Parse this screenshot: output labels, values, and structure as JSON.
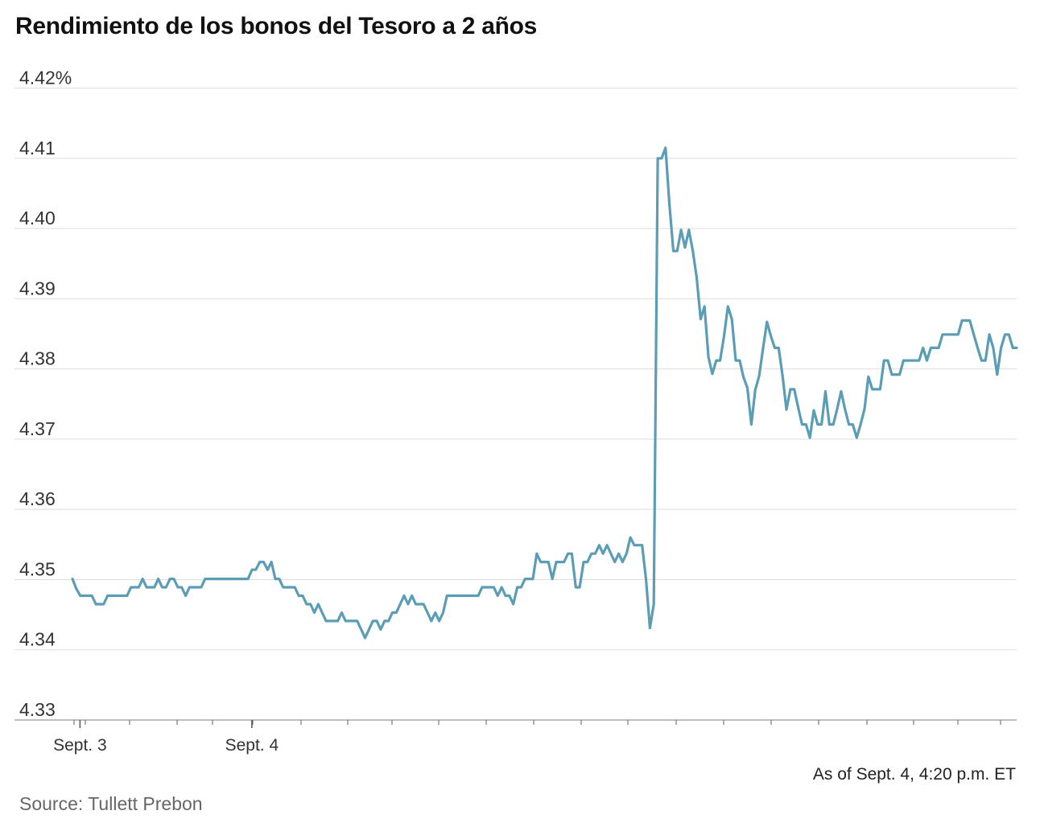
{
  "chart_data": {
    "type": "line",
    "title": "Rendimiento de los bonos del Tesoro a 2 años",
    "xlabel": "",
    "ylabel": "",
    "ylim": [
      4.33,
      4.42
    ],
    "yticks": [
      4.42,
      4.41,
      4.4,
      4.39,
      4.38,
      4.37,
      4.36,
      4.35,
      4.34,
      4.33
    ],
    "ytick_labels": [
      "4.42%",
      "4.41",
      "4.40",
      "4.39",
      "4.38",
      "4.37",
      "4.36",
      "4.35",
      "4.34",
      "4.33"
    ],
    "x_tick_labels": [
      {
        "label": "Sept. 3",
        "t": 0.008
      },
      {
        "label": "Sept. 4",
        "t": 0.19
      }
    ],
    "grid": true,
    "legend": "none",
    "color": "#5b9db4",
    "series": [
      {
        "values": [
          4.3501,
          4.3487,
          4.3477,
          4.3477,
          4.3477,
          4.3477,
          4.3465,
          4.3465,
          4.3465,
          4.3477,
          4.3477,
          4.3477,
          4.3477,
          4.3477,
          4.3477,
          4.3489,
          4.3489,
          4.3489,
          4.3501,
          4.3489,
          4.3489,
          4.3489,
          4.3501,
          4.3489,
          4.3489,
          4.3501,
          4.3501,
          4.3489,
          4.3489,
          4.3477,
          4.3489,
          4.3489,
          4.3489,
          4.3489,
          4.3501,
          4.3501,
          4.3501,
          4.3501,
          4.3501,
          4.3501,
          4.3501,
          4.3501,
          4.3501,
          4.3501,
          4.3501,
          4.3501,
          4.3514,
          4.3514,
          4.3525,
          4.3525,
          4.3514,
          4.3525,
          4.3501,
          4.3501,
          4.3489,
          4.3489,
          4.3489,
          4.3489,
          4.3477,
          4.3477,
          4.3465,
          4.3465,
          4.3453,
          4.3465,
          4.3453,
          4.3441,
          4.3441,
          4.3441,
          4.3441,
          4.3453,
          4.3441,
          4.3441,
          4.3441,
          4.3441,
          4.3429,
          4.3417,
          4.3429,
          4.3441,
          4.3441,
          4.3429,
          4.3441,
          4.3441,
          4.3453,
          4.3453,
          4.3465,
          4.3477,
          4.3465,
          4.3477,
          4.3465,
          4.3465,
          4.3465,
          4.3453,
          4.3441,
          4.3453,
          4.3441,
          4.3453,
          4.3477,
          4.3477,
          4.3477,
          4.3477,
          4.3477,
          4.3477,
          4.3477,
          4.3477,
          4.3477,
          4.3489,
          4.3489,
          4.3489,
          4.3489,
          4.3477,
          4.3489,
          4.3477,
          4.3477,
          4.3465,
          4.3489,
          4.3489,
          4.3501,
          4.3501,
          4.3501,
          4.3537,
          4.3525,
          4.3525,
          4.3525,
          4.3501,
          4.3525,
          4.3525,
          4.3525,
          4.3537,
          4.3537,
          4.3489,
          4.3489,
          4.3525,
          4.3525,
          4.3537,
          4.3537,
          4.3549,
          4.3537,
          4.3549,
          4.3537,
          4.3525,
          4.3537,
          4.3525,
          4.3537,
          4.356,
          4.3549,
          4.3549,
          4.3549,
          4.3501,
          4.3431,
          4.3465,
          4.41,
          4.41,
          4.4115,
          4.4035,
          4.3968,
          4.3968,
          4.3998,
          4.3973,
          4.3998,
          4.3968,
          4.393,
          4.3871,
          4.3889,
          4.3817,
          4.3793,
          4.3812,
          4.3812,
          4.3847,
          4.3889,
          4.3871,
          4.3812,
          4.3812,
          4.3788,
          4.3773,
          4.3721,
          4.377,
          4.379,
          4.3829,
          4.3867,
          4.3847,
          4.383,
          4.383,
          4.379,
          4.3742,
          4.3771,
          4.3771,
          4.3745,
          4.3721,
          4.3721,
          4.3702,
          4.3741,
          4.3721,
          4.3721,
          4.3768,
          4.3721,
          4.3721,
          4.3743,
          4.3768,
          4.3743,
          4.3721,
          4.3721,
          4.3702,
          4.3721,
          4.3743,
          4.3789,
          4.3771,
          4.3771,
          4.3771,
          4.3812,
          4.3812,
          4.3792,
          4.3792,
          4.3792,
          4.3812,
          4.3812,
          4.3812,
          4.3812,
          4.3812,
          4.383,
          4.3812,
          4.383,
          4.383,
          4.383,
          4.3849,
          4.3849,
          4.3849,
          4.3849,
          4.3849,
          4.3869,
          4.3869,
          4.3869,
          4.3849,
          4.383,
          4.3812,
          4.3812,
          4.3849,
          4.383,
          4.3792,
          4.383,
          4.3849,
          4.3849,
          4.383,
          4.383
        ]
      }
    ],
    "annotations": [
      "As of Sept. 4, 4:20 p.m. ET"
    ]
  },
  "source": "Source: Tullett Prebon"
}
